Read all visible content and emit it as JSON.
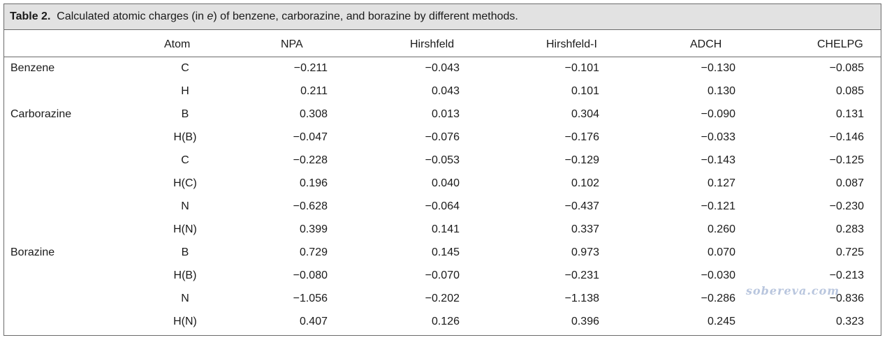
{
  "caption": {
    "label": "Table 2.",
    "text_before": "Calculated atomic charges (in ",
    "text_italic": "e",
    "text_after": ") of benzene, carborazine, and borazine by different methods."
  },
  "headers": [
    "",
    "Atom",
    "NPA",
    "Hirshfeld",
    "Hirshfeld-I",
    "ADCH",
    "CHELPG"
  ],
  "rows": [
    {
      "molecule": "Benzene",
      "atom": "C",
      "values": [
        "−0.211",
        "−0.043",
        "−0.101",
        "−0.130",
        "−0.085"
      ]
    },
    {
      "molecule": "",
      "atom": "H",
      "values": [
        "0.211",
        "0.043",
        "0.101",
        "0.130",
        "0.085"
      ]
    },
    {
      "molecule": "Carborazine",
      "atom": "B",
      "values": [
        "0.308",
        "0.013",
        "0.304",
        "−0.090",
        "0.131"
      ]
    },
    {
      "molecule": "",
      "atom": "H(B)",
      "values": [
        "−0.047",
        "−0.076",
        "−0.176",
        "−0.033",
        "−0.146"
      ]
    },
    {
      "molecule": "",
      "atom": "C",
      "values": [
        "−0.228",
        "−0.053",
        "−0.129",
        "−0.143",
        "−0.125"
      ]
    },
    {
      "molecule": "",
      "atom": "H(C)",
      "values": [
        "0.196",
        "0.040",
        "0.102",
        "0.127",
        "0.087"
      ]
    },
    {
      "molecule": "",
      "atom": "N",
      "values": [
        "−0.628",
        "−0.064",
        "−0.437",
        "−0.121",
        "−0.230"
      ]
    },
    {
      "molecule": "",
      "atom": "H(N)",
      "values": [
        "0.399",
        "0.141",
        "0.337",
        "0.260",
        "0.283"
      ]
    },
    {
      "molecule": "Borazine",
      "atom": "B",
      "values": [
        "0.729",
        "0.145",
        "0.973",
        "0.070",
        "0.725"
      ]
    },
    {
      "molecule": "",
      "atom": "H(B)",
      "values": [
        "−0.080",
        "−0.070",
        "−0.231",
        "−0.030",
        "−0.213"
      ]
    },
    {
      "molecule": "",
      "atom": "N",
      "values": [
        "−1.056",
        "−0.202",
        "−1.138",
        "−0.286",
        "−0.836"
      ]
    },
    {
      "molecule": "",
      "atom": "H(N)",
      "values": [
        "0.407",
        "0.126",
        "0.396",
        "0.245",
        "0.323"
      ]
    }
  ],
  "watermark": "sobereva.com"
}
